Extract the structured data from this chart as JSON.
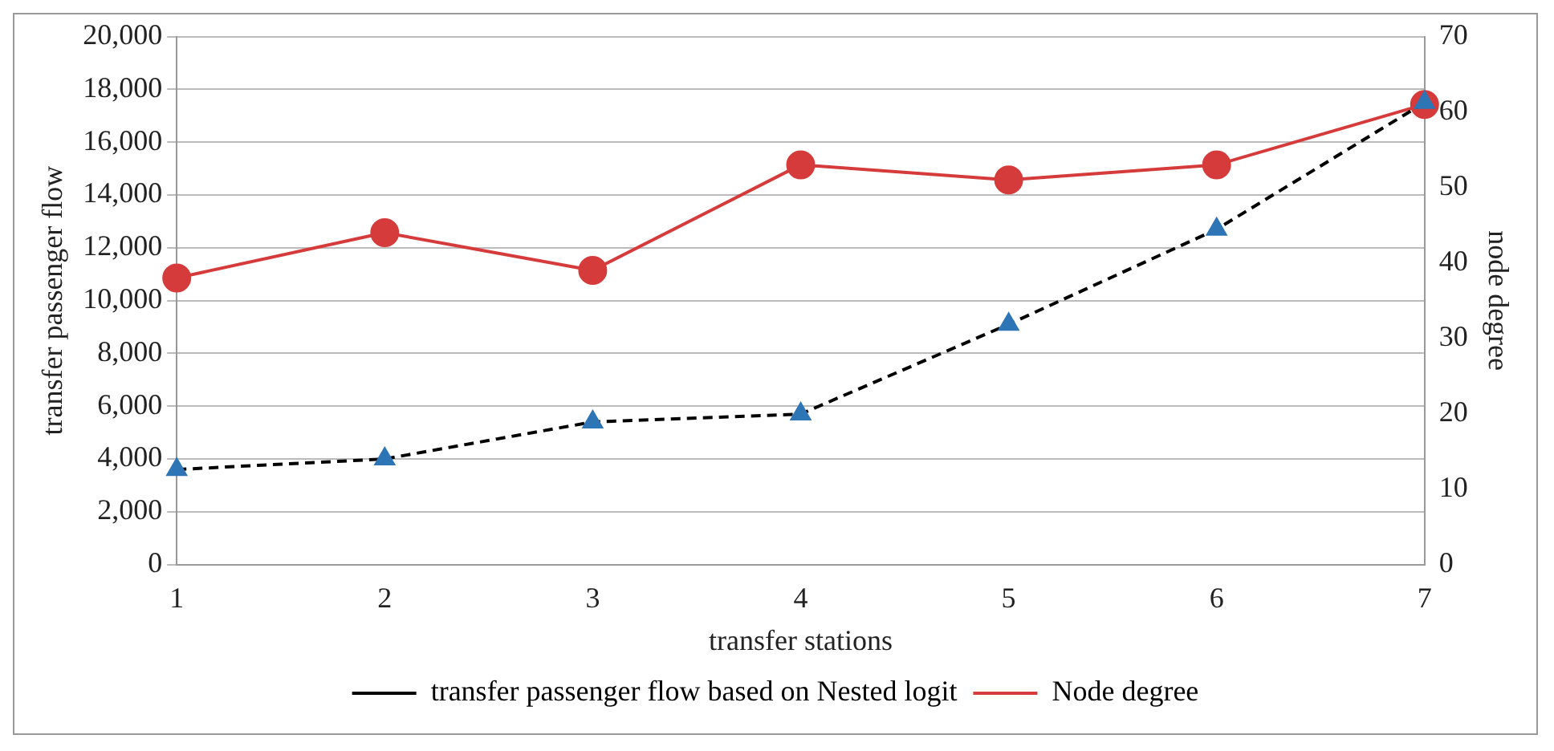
{
  "chart_data": {
    "type": "line",
    "xlabel": "transfer stations",
    "ylabel": "transfer passenger flow",
    "y2label": "node degree",
    "categories": [
      "1",
      "2",
      "3",
      "4",
      "5",
      "6",
      "7"
    ],
    "series": [
      {
        "name": "transfer passenger flow based on Nested logit",
        "color": "#000000",
        "colors": [
          "#2e75b6",
          "#2e75b6",
          "#2e75b6",
          "#2e75b6",
          "#2e75b6",
          "#2e75b6",
          "#2e75b6"
        ],
        "values": [
          3600,
          4000,
          5400,
          5700,
          9100,
          12700,
          17500
        ],
        "marker": "triangle",
        "line_style": "dashed"
      },
      {
        "name": "Node degree",
        "color": "#d63b3b",
        "values": [
          38,
          44,
          39,
          53,
          51,
          53,
          61
        ],
        "marker": "circle",
        "line_style": "solid",
        "axis": "y2"
      }
    ],
    "ylim": [
      0,
      20000
    ],
    "yticks": [
      0,
      {
        "value": 2000,
        "label": "2,000"
      },
      {
        "value": 4000,
        "label": "4,000"
      },
      {
        "value": 6000,
        "label": "6,000"
      },
      {
        "value": 8000,
        "label": "8,000"
      },
      {
        "value": 10000,
        "label": "10,000"
      },
      {
        "value": 12000,
        "label": "12,000"
      },
      {
        "value": 14000,
        "label": "14,000"
      },
      {
        "value": 16000,
        "label": "16,000"
      },
      {
        "value": 18000,
        "label": "18,000"
      },
      {
        "value": 20000,
        "label": "20,000"
      }
    ],
    "y2lim": [
      0,
      70
    ],
    "y2ticks": [
      0,
      10,
      20,
      30,
      40,
      50,
      60,
      70
    ],
    "grid": "y",
    "legend": "bottom"
  }
}
